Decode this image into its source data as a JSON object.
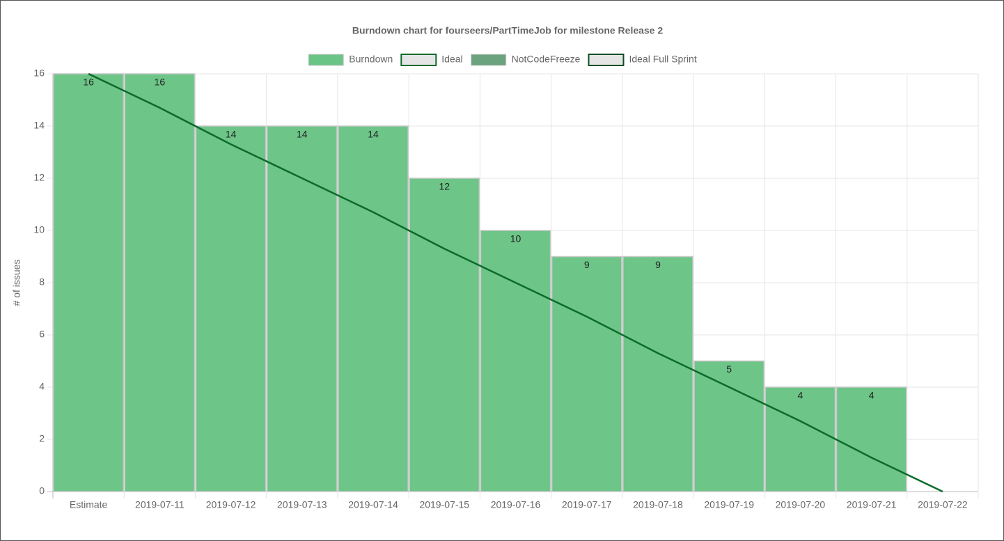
{
  "chart_data": {
    "type": "bar",
    "title": "Burndown chart for fourseers/PartTimeJob for milestone Release 2",
    "y_label": "# of issues",
    "categories": [
      "Estimate",
      "2019-07-11",
      "2019-07-12",
      "2019-07-13",
      "2019-07-14",
      "2019-07-15",
      "2019-07-16",
      "2019-07-17",
      "2019-07-18",
      "2019-07-19",
      "2019-07-20",
      "2019-07-21",
      "2019-07-22"
    ],
    "series": [
      {
        "name": "Burndown",
        "type": "bar",
        "color": "#6ac486",
        "values": [
          16,
          16,
          14,
          14,
          14,
          12,
          10,
          9,
          9,
          5,
          4,
          4,
          null
        ]
      },
      {
        "name": "Ideal",
        "type": "line",
        "color": "#0b6b2b",
        "values": [
          16,
          14.7,
          13.3,
          12,
          10.7,
          9.3,
          8,
          6.7,
          5.3,
          4,
          2.7,
          1.3,
          0
        ]
      },
      {
        "name": "NotCodeFreeze",
        "type": "bar",
        "color": "#6aa37e",
        "values": [
          null,
          null,
          null,
          null,
          null,
          null,
          null,
          null,
          null,
          null,
          null,
          null,
          null
        ]
      },
      {
        "name": "Ideal Full Sprint",
        "type": "line",
        "color": "#0b4d23",
        "values": [
          null,
          null,
          null,
          null,
          null,
          null,
          null,
          null,
          null,
          null,
          null,
          null,
          null
        ]
      }
    ],
    "ylim": [
      0,
      16
    ],
    "yticks": [
      0,
      2,
      4,
      6,
      8,
      10,
      12,
      14,
      16
    ],
    "grid": true
  }
}
